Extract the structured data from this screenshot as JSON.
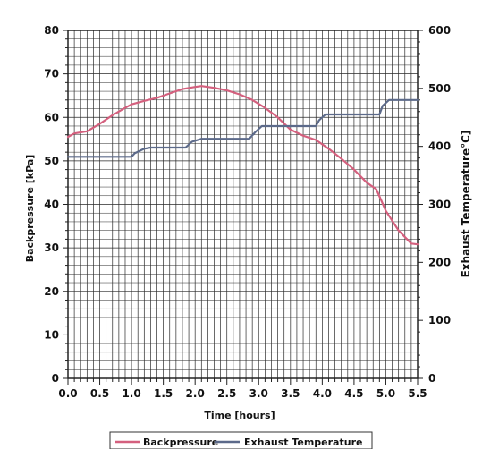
{
  "chart_data": {
    "type": "line",
    "title": "",
    "xlabel": "Time [hours]",
    "ylabel_left": "Backpressure [kPa]",
    "ylabel_right": "Exhaust Temperature°C]",
    "xlim": [
      0,
      5.5
    ],
    "ylim_left": [
      0,
      80
    ],
    "ylim_right": [
      0,
      600
    ],
    "grid": true,
    "legend_position": "bottom",
    "x_ticks": [
      "0.0",
      "0.5",
      "1.0",
      "1.5",
      "2.0",
      "2.5",
      "3.0",
      "3.5",
      "4.0",
      "4.5",
      "5.0",
      "5.5"
    ],
    "y_left_ticks": [
      "0",
      "10",
      "20",
      "30",
      "40",
      "50",
      "60",
      "70",
      "80"
    ],
    "y_right_ticks": [
      "0",
      "100",
      "200",
      "300",
      "400",
      "500",
      "600"
    ],
    "series": [
      {
        "name": "Backpressure",
        "axis": "left",
        "color": "#d4607e",
        "x": [
          0.0,
          0.1,
          0.3,
          0.5,
          0.7,
          0.9,
          1.0,
          1.2,
          1.4,
          1.6,
          1.8,
          2.0,
          2.1,
          2.3,
          2.5,
          2.7,
          2.9,
          3.1,
          3.3,
          3.5,
          3.7,
          3.9,
          4.1,
          4.3,
          4.5,
          4.7,
          4.85,
          5.0,
          5.2,
          5.4,
          5.5
        ],
        "y": [
          55.5,
          56.3,
          56.8,
          58.5,
          60.5,
          62.2,
          63.0,
          63.8,
          64.5,
          65.5,
          66.5,
          67.0,
          67.2,
          66.8,
          66.2,
          65.3,
          64.0,
          62.2,
          60.0,
          57.2,
          55.8,
          54.8,
          52.8,
          50.5,
          48.0,
          45.0,
          43.5,
          38.5,
          34.0,
          31.0,
          30.8
        ]
      },
      {
        "name": "Exhaust Temperature",
        "axis": "right",
        "color": "#5c6a8a",
        "x": [
          0.0,
          1.0,
          1.05,
          1.2,
          1.3,
          1.85,
          1.95,
          2.1,
          2.85,
          2.95,
          3.05,
          3.9,
          3.95,
          4.05,
          4.9,
          4.95,
          5.05,
          5.5
        ],
        "y": [
          382,
          382,
          388,
          396,
          398,
          398,
          408,
          413,
          413,
          425,
          435,
          435,
          445,
          455,
          455,
          470,
          480,
          480
        ]
      }
    ]
  }
}
